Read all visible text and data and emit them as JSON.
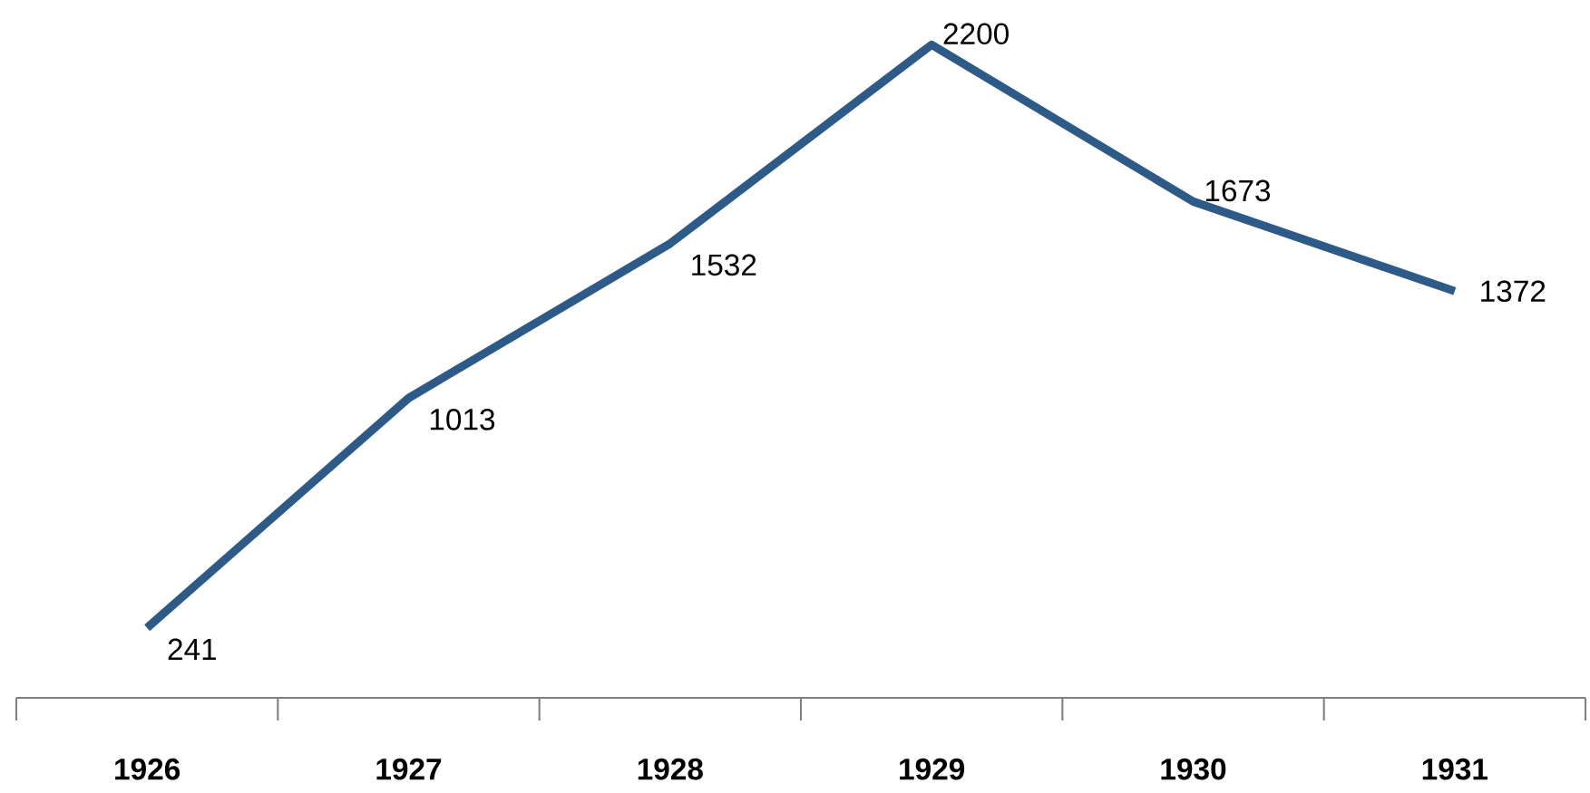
{
  "chart_data": {
    "type": "line",
    "categories": [
      "1926",
      "1927",
      "1928",
      "1929",
      "1930",
      "1931"
    ],
    "series": [
      {
        "color": "#2e5a87",
        "values": [
          241,
          1013,
          1532,
          2200,
          1673,
          1372
        ]
      }
    ],
    "data_labels": true
  }
}
